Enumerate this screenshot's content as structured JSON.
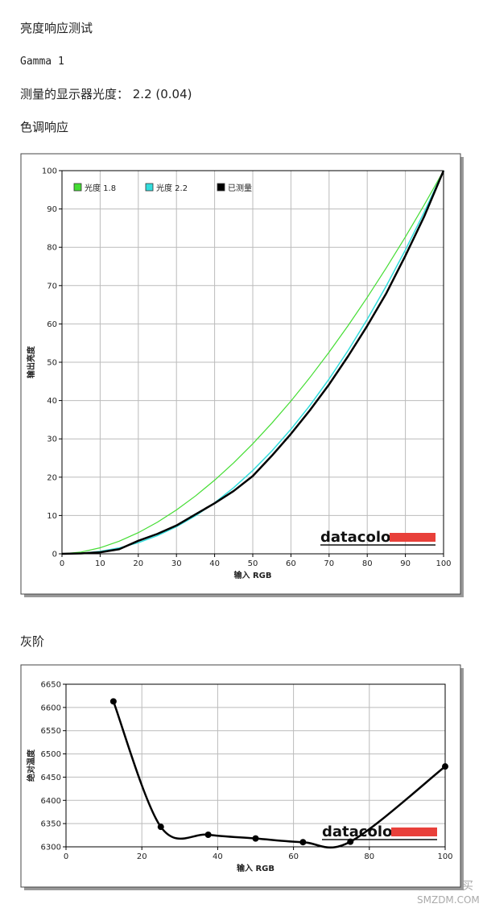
{
  "page": {
    "heading": "亮度响应测试",
    "gamma": "Gamma 1",
    "measured": "测量的显示器光度： 2.2 (0.04)",
    "watermark": "什么值得买",
    "watermark_site": "SMZDM.COM"
  },
  "chart_data": [
    {
      "type": "line",
      "title": "色调响应",
      "x_label": "输入 RGB",
      "y_label": "输出亮度",
      "logo": "datacolor",
      "x": [
        0,
        5,
        10,
        15,
        20,
        25,
        30,
        35,
        40,
        45,
        50,
        55,
        60,
        65,
        70,
        75,
        80,
        85,
        90,
        95,
        100
      ],
      "series": [
        {
          "name": "光度 1.8",
          "color": "#44dd33",
          "width": 1.2,
          "values": [
            0,
            0.46,
            1.58,
            3.29,
            5.52,
            8.25,
            11.45,
            15.11,
            19.22,
            23.76,
            28.72,
            34.1,
            39.87,
            46.05,
            52.62,
            59.58,
            66.92,
            74.64,
            82.72,
            91.18,
            100
          ]
        },
        {
          "name": "光度 2.2",
          "color": "#33dddd",
          "width": 1.5,
          "values": [
            0,
            0.14,
            0.63,
            1.54,
            2.9,
            4.74,
            7.07,
            9.93,
            13.32,
            17.26,
            21.76,
            26.84,
            32.5,
            38.76,
            45.62,
            53.1,
            61.21,
            69.94,
            79.31,
            89.33,
            100
          ]
        },
        {
          "name": "已测量",
          "color": "#000000",
          "width": 2.5,
          "values": [
            0,
            0.1,
            0.4,
            1.2,
            3.4,
            5.2,
            7.4,
            10.3,
            13.2,
            16.4,
            20.3,
            25.6,
            31.3,
            37.5,
            44.2,
            51.6,
            59.5,
            68,
            77.8,
            88.2,
            100
          ]
        }
      ],
      "xlim": [
        0,
        100
      ],
      "xticks": [
        0,
        10,
        20,
        30,
        40,
        50,
        60,
        70,
        80,
        90,
        100
      ],
      "ylim": [
        0,
        100
      ],
      "yticks": [
        0,
        10,
        20,
        30,
        40,
        50,
        60,
        70,
        80,
        90,
        100
      ],
      "grid": true,
      "legend": "top-left",
      "smooth": false,
      "markers": false
    },
    {
      "type": "line",
      "title": "灰阶",
      "x_label": "输入 RGB",
      "y_label": "绝对温度",
      "logo": "datacolor",
      "x": [
        12.5,
        25,
        37.5,
        50,
        62.5,
        75,
        100
      ],
      "series": [
        {
          "color": "#000000",
          "width": 2.5,
          "values": [
            6613,
            6343,
            6326,
            6318,
            6310,
            6311,
            6473
          ]
        }
      ],
      "xlim": [
        0,
        100
      ],
      "xticks": [
        0,
        20,
        40,
        60,
        80,
        100
      ],
      "ylim": [
        6300,
        6650
      ],
      "yticks": [
        6300,
        6350,
        6400,
        6450,
        6500,
        6550,
        6600,
        6650
      ],
      "grid": true,
      "smooth": true,
      "markers": true
    }
  ]
}
